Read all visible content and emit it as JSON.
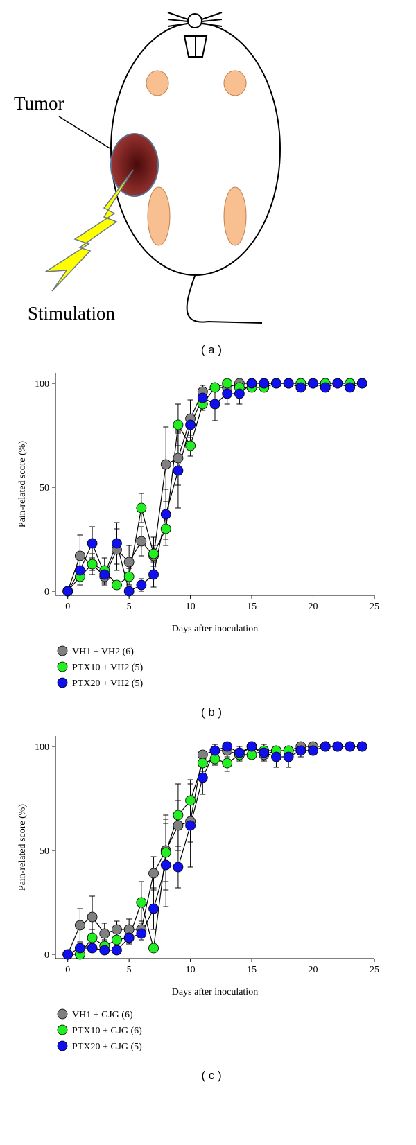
{
  "diagram": {
    "labels": [
      "Tumor",
      "Stimulation"
    ],
    "caption": "( a )"
  },
  "chart_data": [
    {
      "type": "line",
      "caption": "( b )",
      "xlabel": "Days after inoculation",
      "ylabel": "Pain-related score (%)",
      "x": [
        0,
        1,
        2,
        3,
        4,
        5,
        6,
        7,
        8,
        9,
        10,
        11,
        12,
        13,
        14,
        15,
        16,
        17,
        18,
        19,
        20,
        21,
        22,
        23,
        24
      ],
      "xlim": [
        -1,
        25
      ],
      "xticks": [
        0,
        5,
        10,
        15,
        20,
        25
      ],
      "ylim": [
        -2,
        105
      ],
      "yticks": [
        0,
        50,
        100
      ],
      "legend": "below",
      "series": [
        {
          "name": "VH1 + VH2 (6)",
          "color": "#808080",
          "values": [
            0,
            17,
            13,
            7,
            20,
            14,
            24,
            17,
            61,
            64,
            83,
            96,
            98,
            98,
            100,
            100,
            100,
            100,
            100,
            100,
            100,
            100,
            100,
            100,
            100
          ],
          "errors": [
            0,
            10,
            5,
            4,
            10,
            8,
            7,
            5,
            18,
            13,
            9,
            3,
            2,
            2,
            1,
            1,
            0,
            0,
            0,
            1,
            0,
            0,
            0,
            0,
            0
          ]
        },
        {
          "name": "PTX10 + VH2 (5)",
          "color": "#22ee22",
          "values": [
            0,
            7,
            13,
            10,
            3,
            7,
            40,
            18,
            30,
            80,
            70,
            90,
            98,
            100,
            98,
            98,
            98,
            100,
            100,
            100,
            100,
            100,
            100,
            100,
            100
          ],
          "errors": [
            0,
            4,
            3,
            6,
            2,
            4,
            7,
            8,
            8,
            10,
            5,
            3,
            2,
            0,
            2,
            2,
            2,
            0,
            0,
            0,
            0,
            0,
            0,
            0,
            0
          ]
        },
        {
          "name": "PTX20 + VH2 (5)",
          "color": "#1010ee",
          "values": [
            0,
            10,
            23,
            8,
            23,
            0,
            3,
            8,
            37,
            58,
            80,
            93,
            90,
            95,
            95,
            100,
            100,
            100,
            100,
            98,
            100,
            98,
            100,
            98,
            100
          ],
          "errors": [
            0,
            5,
            8,
            4,
            10,
            0,
            3,
            6,
            12,
            18,
            12,
            5,
            8,
            5,
            5,
            0,
            0,
            0,
            0,
            2,
            0,
            2,
            0,
            2,
            0
          ]
        }
      ]
    },
    {
      "type": "line",
      "caption": "( c )",
      "xlabel": "Days after inoculation",
      "ylabel": "Pain-related score (%)",
      "x": [
        0,
        1,
        2,
        3,
        4,
        5,
        6,
        7,
        8,
        9,
        10,
        11,
        12,
        13,
        14,
        15,
        16,
        17,
        18,
        19,
        20,
        21,
        22,
        23,
        24
      ],
      "xlim": [
        -1,
        25
      ],
      "xticks": [
        0,
        5,
        10,
        15,
        20,
        25
      ],
      "ylim": [
        -2,
        105
      ],
      "yticks": [
        0,
        50,
        100
      ],
      "legend": "below",
      "series": [
        {
          "name": "VH1 + GJG (6)",
          "color": "#808080",
          "values": [
            0,
            14,
            18,
            10,
            12,
            12,
            12,
            39,
            50,
            62,
            64,
            96,
            98,
            98,
            96,
            100,
            96,
            98,
            98,
            100,
            100,
            100,
            100,
            100,
            100
          ],
          "errors": [
            0,
            8,
            10,
            5,
            4,
            5,
            4,
            8,
            15,
            12,
            10,
            2,
            3,
            3,
            3,
            2,
            3,
            2,
            2,
            1,
            0,
            0,
            0,
            0,
            0
          ]
        },
        {
          "name": "PTX10 + GJG (6)",
          "color": "#22ee22",
          "values": [
            0,
            0,
            8,
            4,
            7,
            8,
            25,
            3,
            49,
            67,
            74,
            92,
            94,
            92,
            96,
            96,
            98,
            98,
            98,
            98,
            98,
            100,
            100,
            100,
            100
          ],
          "errors": [
            0,
            0,
            4,
            3,
            3,
            3,
            10,
            0,
            18,
            15,
            10,
            4,
            3,
            4,
            3,
            2,
            2,
            2,
            2,
            2,
            2,
            0,
            0,
            0,
            0
          ]
        },
        {
          "name": "PTX20 + GJG (5)",
          "color": "#1010ee",
          "values": [
            0,
            3,
            3,
            2,
            2,
            8,
            10,
            22,
            43,
            42,
            62,
            85,
            98,
            100,
            97,
            100,
            97,
            95,
            95,
            98,
            98,
            100,
            100,
            100,
            100
          ],
          "errors": [
            0,
            2,
            2,
            2,
            2,
            3,
            3,
            10,
            20,
            10,
            20,
            8,
            3,
            0,
            3,
            0,
            4,
            5,
            5,
            3,
            2,
            0,
            0,
            0,
            0
          ]
        }
      ]
    }
  ]
}
